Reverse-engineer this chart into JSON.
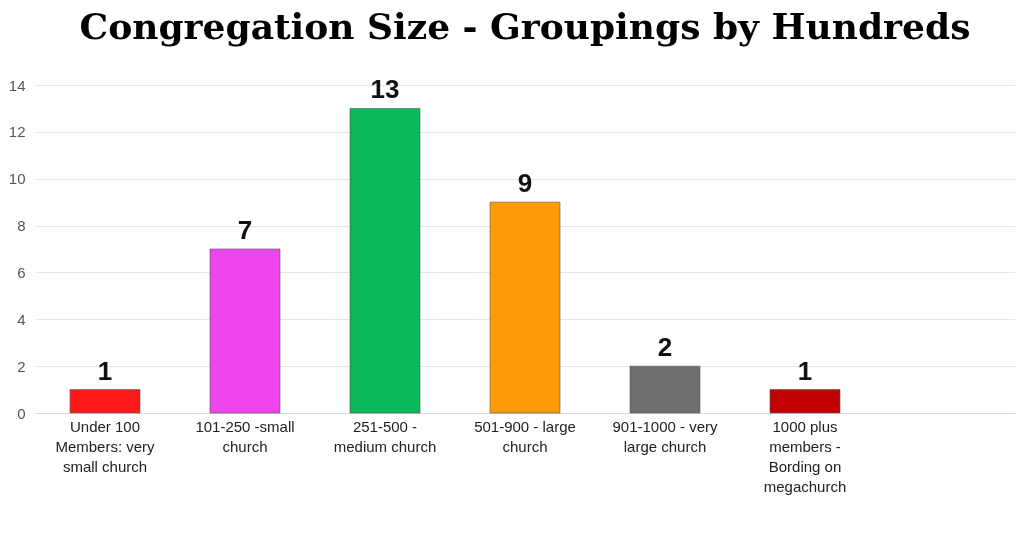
{
  "chart_data": {
    "type": "bar",
    "title": "Congregation Size - Groupings by Hundreds",
    "categories": [
      "Under 100 Members: very small church",
      "101-250 -small church",
      "251-500 - medium church",
      "501-900 - large church",
      "901-1000 - very large church",
      "1000 plus members - Bording on megachurch",
      null
    ],
    "values": [
      1,
      7,
      13,
      9,
      2,
      1,
      null
    ],
    "colors": [
      "#ff1a1a",
      "#ee44ee",
      "#0cb857",
      "#ff9b0a",
      "#6e6e6e",
      "#c00000",
      "#ffffff"
    ],
    "ylim": [
      0,
      14
    ],
    "yticks": [
      0,
      2,
      4,
      6,
      8,
      10,
      12,
      14
    ],
    "grid": "y",
    "data_labels": true
  }
}
